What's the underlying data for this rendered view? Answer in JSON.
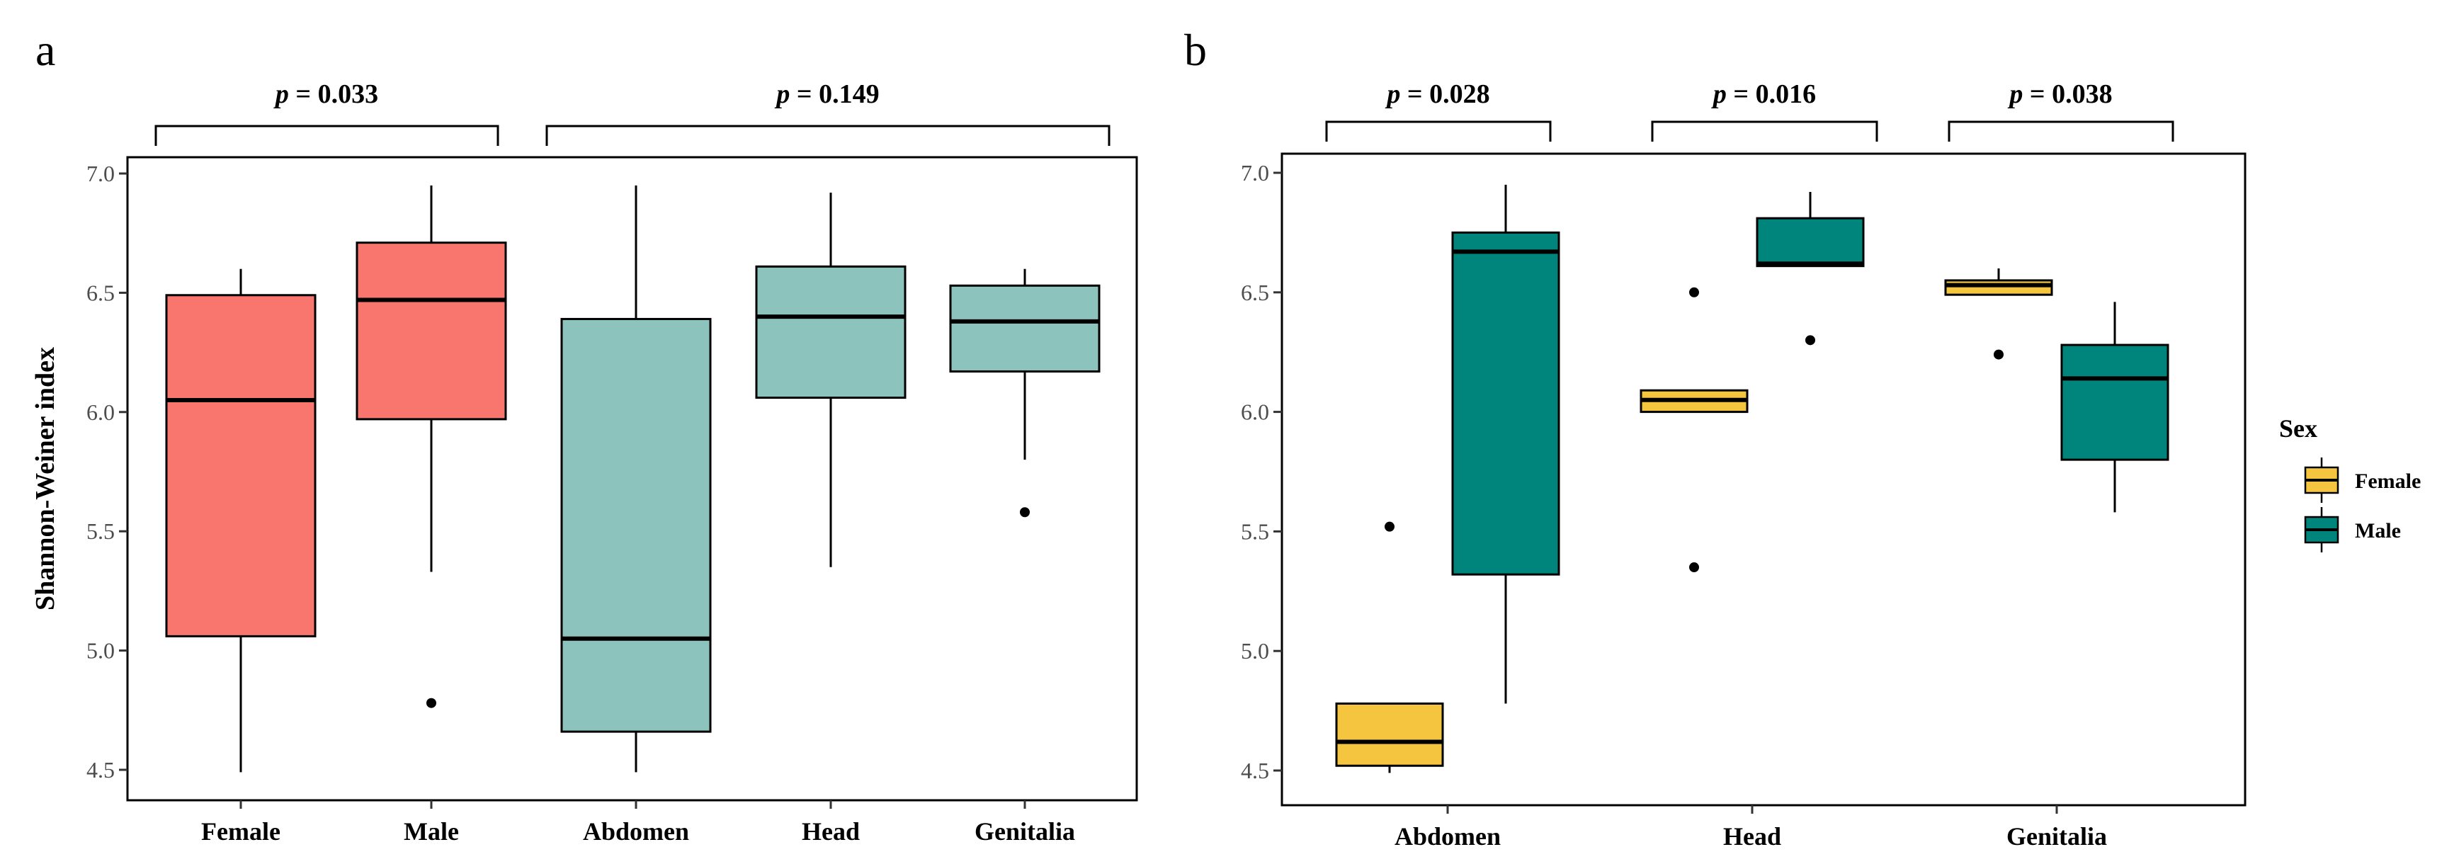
{
  "colors": {
    "female_a": "#f8766d",
    "male_a": "#f8766d",
    "region_a": "#8cc3bd",
    "female_b": "#f6c540",
    "male_b": "#00857c"
  },
  "chart_data": [
    {
      "panel": "a",
      "type": "boxplot",
      "ylabel": "Shannon-Weiner index",
      "xlabel": "",
      "ylim": [
        4.43,
        7.1
      ],
      "yticks": [
        4.5,
        5.0,
        5.5,
        6.0,
        6.5,
        7.0
      ],
      "ytick_labels": [
        "4.5",
        "5.0",
        "5.5",
        "6.0",
        "6.5",
        "7.0"
      ],
      "categories": [
        "Female",
        "Male",
        "Abdomen",
        "Head",
        "Genitalia"
      ],
      "boxes": [
        {
          "category": "Female",
          "color_key": "female_a",
          "min": 4.49,
          "q1": 5.06,
          "median": 6.05,
          "q3": 6.49,
          "max": 6.6,
          "outliers": []
        },
        {
          "category": "Male",
          "color_key": "male_a",
          "min": 5.33,
          "q1": 5.97,
          "median": 6.47,
          "q3": 6.71,
          "max": 6.95,
          "outliers": [
            4.78
          ]
        },
        {
          "category": "Abdomen",
          "color_key": "region_a",
          "min": 4.49,
          "q1": 4.66,
          "median": 5.05,
          "q3": 6.39,
          "max": 6.95,
          "outliers": []
        },
        {
          "category": "Head",
          "color_key": "region_a",
          "min": 5.35,
          "q1": 6.06,
          "median": 6.4,
          "q3": 6.61,
          "max": 6.92,
          "outliers": []
        },
        {
          "category": "Genitalia",
          "color_key": "region_a",
          "min": 5.8,
          "q1": 6.17,
          "median": 6.38,
          "q3": 6.53,
          "max": 6.6,
          "outliers": [
            5.58
          ]
        }
      ],
      "significance": [
        {
          "p": "p",
          "text": " = 0.033",
          "from": "Female",
          "to": "Male"
        },
        {
          "p": "p",
          "text": " = 0.149",
          "from": "Abdomen",
          "to": "Genitalia"
        }
      ]
    },
    {
      "panel": "b",
      "type": "boxplot",
      "ylabel": "",
      "xlabel": "",
      "ylim": [
        4.43,
        7.1
      ],
      "yticks": [
        4.5,
        5.0,
        5.5,
        6.0,
        6.5,
        7.0
      ],
      "ytick_labels": [
        "4.5",
        "5.0",
        "5.5",
        "6.0",
        "6.5",
        "7.0"
      ],
      "categories": [
        "Abdomen",
        "Head",
        "Genitalia"
      ],
      "series": [
        {
          "name": "Female",
          "color_key": "female_b",
          "boxes": [
            {
              "category": "Abdomen",
              "min": 4.49,
              "q1": 4.52,
              "median": 4.62,
              "q3": 4.78,
              "max": 4.78,
              "outliers": [
                5.52
              ]
            },
            {
              "category": "Head",
              "min": 6.0,
              "q1": 6.0,
              "median": 6.05,
              "q3": 6.09,
              "max": 6.09,
              "outliers": [
                5.35,
                6.5
              ]
            },
            {
              "category": "Genitalia",
              "min": 6.49,
              "q1": 6.49,
              "median": 6.53,
              "q3": 6.55,
              "max": 6.6,
              "outliers": [
                6.24
              ]
            }
          ]
        },
        {
          "name": "Male",
          "color_key": "male_b",
          "boxes": [
            {
              "category": "Abdomen",
              "min": 4.78,
              "q1": 5.32,
              "median": 6.67,
              "q3": 6.75,
              "max": 6.95,
              "outliers": []
            },
            {
              "category": "Head",
              "min": 6.61,
              "q1": 6.61,
              "median": 6.62,
              "q3": 6.81,
              "max": 6.92,
              "outliers": [
                6.3
              ]
            },
            {
              "category": "Genitalia",
              "min": 5.58,
              "q1": 5.8,
              "median": 6.14,
              "q3": 6.28,
              "max": 6.46,
              "outliers": []
            }
          ]
        }
      ],
      "significance": [
        {
          "p": "p",
          "text": " = 0.028",
          "from": "Abdomen",
          "to": "Abdomen"
        },
        {
          "p": "p",
          "text": " = 0.016",
          "from": "Head",
          "to": "Head"
        },
        {
          "p": "p",
          "text": " = 0.038",
          "from": "Genitalia",
          "to": "Genitalia"
        }
      ],
      "legend": {
        "title": "Sex",
        "entries": [
          "Female",
          "Male"
        ],
        "placement": "right"
      }
    }
  ],
  "labels": {
    "panel_a": "a",
    "panel_b": "b"
  }
}
